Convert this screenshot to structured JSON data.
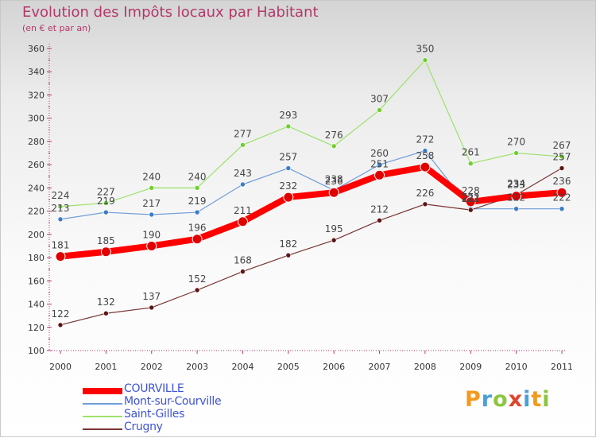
{
  "header": {
    "title": "Evolution des Impôts locaux par Habitant",
    "subtitle": "(en € et par an)"
  },
  "logo": {
    "text": "Proxiti",
    "letters": [
      {
        "ch": "P",
        "color": "#f39a1c"
      },
      {
        "ch": "r",
        "color": "#4aa0d8"
      },
      {
        "ch": "o",
        "color": "#8cc63f"
      },
      {
        "ch": "x",
        "color": "#e0442b"
      },
      {
        "ch": "i",
        "color": "#4aa0d8"
      },
      {
        "ch": "t",
        "color": "#f39a1c"
      },
      {
        "ch": "i",
        "color": "#8cc63f"
      }
    ]
  },
  "chart_data": {
    "type": "line",
    "title": "Evolution des Impôts locaux par Habitant",
    "subtitle": "(en € et par an)",
    "xlabel": "",
    "ylabel": "",
    "ylim": [
      100,
      360
    ],
    "ytick_step": 20,
    "grid": false,
    "legend_position": "bottom-left",
    "categories": [
      "2000",
      "2001",
      "2002",
      "2003",
      "2004",
      "2005",
      "2006",
      "2007",
      "2008",
      "2009",
      "2010",
      "2011"
    ],
    "series": [
      {
        "name": "COURVILLE",
        "color": "#ff0000",
        "marker": "#e00000",
        "width": 8,
        "marker_r": 6,
        "values": [
          181,
          185,
          190,
          196,
          211,
          232,
          236,
          251,
          258,
          228,
          233,
          236
        ]
      },
      {
        "name": "Mont-sur-Courville",
        "color": "#6f9ed8",
        "marker": "#3a7cc8",
        "width": 1.2,
        "marker_r": 3,
        "values": [
          213,
          219,
          217,
          219,
          243,
          257,
          238,
          260,
          272,
          222,
          222,
          222
        ]
      },
      {
        "name": "Saint-Gilles",
        "color": "#9be26a",
        "marker": "#6fcf2e",
        "width": 1.2,
        "marker_r": 3,
        "values": [
          224,
          227,
          240,
          240,
          277,
          293,
          276,
          307,
          350,
          261,
          270,
          267
        ]
      },
      {
        "name": "Crugny",
        "color": "#7a3434",
        "marker": "#5c1414",
        "width": 1.2,
        "marker_r": 3,
        "values": [
          122,
          132,
          137,
          152,
          168,
          182,
          195,
          212,
          226,
          221,
          234,
          257
        ]
      }
    ]
  }
}
